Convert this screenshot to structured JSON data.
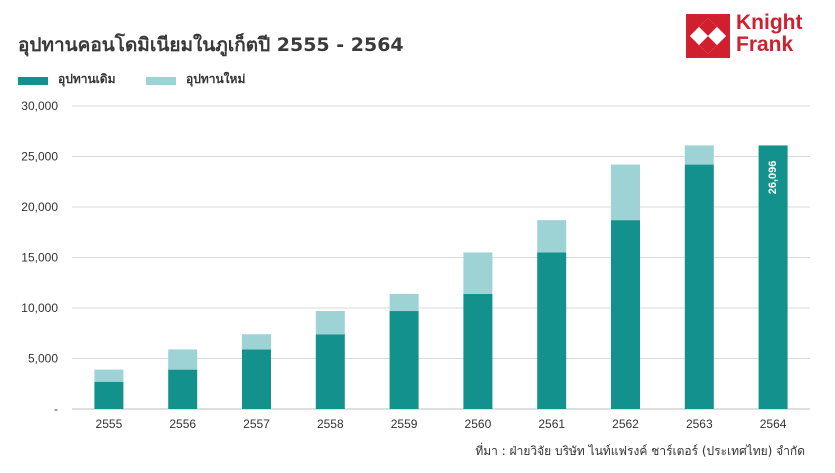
{
  "header": {
    "title": "อุปทานคอนโดมิเนียมในภูเก็ตปี 2555 - 2564"
  },
  "logo": {
    "line1": "Knight",
    "line2": "Frank",
    "color": "#d01f2f"
  },
  "legend": {
    "items": [
      {
        "label": "อุปทานเดิม",
        "color": "#13918d"
      },
      {
        "label": "อุปทานใหม่",
        "color": "#9dd3d5"
      }
    ]
  },
  "footer": {
    "source": "ที่มา : ฝ่ายวิจัย บริษัท ไนท์แฟรงค์ ชาร์เตอร์ (ประเทศไทย) จำกัด"
  },
  "chart_data": {
    "type": "bar",
    "stacked": true,
    "categories": [
      "2555",
      "2556",
      "2557",
      "2558",
      "2559",
      "2560",
      "2561",
      "2562",
      "2563",
      "2564"
    ],
    "series": [
      {
        "name": "อุปทานเดิม",
        "color": "#13918d",
        "values": [
          2700,
          3900,
          5900,
          7400,
          9700,
          11400,
          15500,
          18700,
          24200,
          26096
        ]
      },
      {
        "name": "อุปทานใหม่",
        "color": "#9dd3d5",
        "values": [
          1200,
          2000,
          1500,
          2300,
          1700,
          4100,
          3200,
          5500,
          1900,
          0
        ]
      }
    ],
    "ylim": [
      0,
      30000
    ],
    "yticks": [
      {
        "value": 0,
        "label": "-"
      },
      {
        "value": 5000,
        "label": "5,000"
      },
      {
        "value": 10000,
        "label": "10,000"
      },
      {
        "value": 15000,
        "label": "15,000"
      },
      {
        "value": 20000,
        "label": "20,000"
      },
      {
        "value": 25000,
        "label": "25,000"
      },
      {
        "value": 30000,
        "label": "30,000"
      }
    ],
    "gridlines": true,
    "gridline_color": "#d9d9d9",
    "annotations": [
      {
        "category": "2564",
        "text": "26,096",
        "orientation": "vertical",
        "color": "#ffffff"
      }
    ]
  }
}
